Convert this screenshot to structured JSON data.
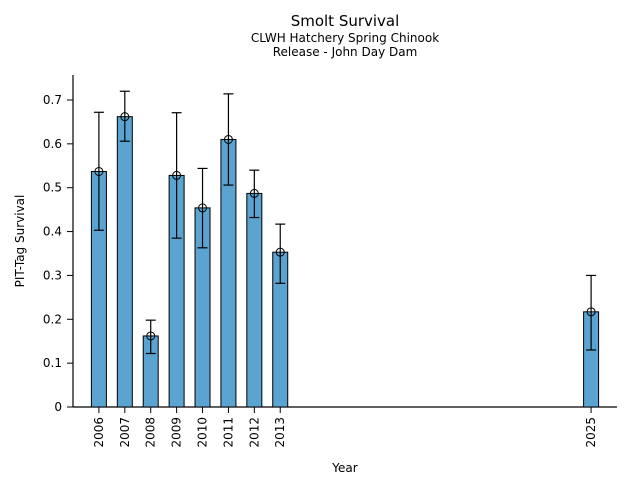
{
  "chart_data": {
    "type": "bar",
    "title": "Smolt Survival",
    "subtitle1": "CLWH Hatchery Spring Chinook",
    "subtitle2": "Release - John Day Dam",
    "xlabel": "Year",
    "ylabel": "PIT-Tag Survival",
    "xlim": [
      2005,
      2026
    ],
    "ylim": [
      0,
      0.757
    ],
    "grid": false,
    "legend": "none",
    "bar_color": "#5BA3D0",
    "bar_edge_color": "#000000",
    "errorbar_color": "#000000",
    "y_ticks": [
      0,
      0.1,
      0.2,
      0.3,
      0.4,
      0.5,
      0.6,
      0.7
    ],
    "y_tick_labels": [
      "0",
      "0.1",
      "0.2",
      "0.3",
      "0.4",
      "0.5",
      "0.6",
      "0.7"
    ],
    "categories": [
      "2006",
      "2007",
      "2008",
      "2009",
      "2010",
      "2011",
      "2012",
      "2013",
      "2025"
    ],
    "series": [
      {
        "name": "PIT-Tag Survival",
        "points": [
          {
            "year": 2006,
            "label": "2006",
            "value": 0.537,
            "err_lo": 0.403,
            "err_hi": 0.672
          },
          {
            "year": 2007,
            "label": "2007",
            "value": 0.662,
            "err_lo": 0.606,
            "err_hi": 0.72
          },
          {
            "year": 2008,
            "label": "2008",
            "value": 0.162,
            "err_lo": 0.122,
            "err_hi": 0.198
          },
          {
            "year": 2009,
            "label": "2009",
            "value": 0.528,
            "err_lo": 0.385,
            "err_hi": 0.671
          },
          {
            "year": 2010,
            "label": "2010",
            "value": 0.454,
            "err_lo": 0.363,
            "err_hi": 0.544
          },
          {
            "year": 2011,
            "label": "2011",
            "value": 0.61,
            "err_lo": 0.506,
            "err_hi": 0.714
          },
          {
            "year": 2012,
            "label": "2012",
            "value": 0.487,
            "err_lo": 0.432,
            "err_hi": 0.54
          },
          {
            "year": 2013,
            "label": "2013",
            "value": 0.353,
            "err_lo": 0.282,
            "err_hi": 0.417
          },
          {
            "year": 2025,
            "label": "2025",
            "value": 0.217,
            "err_lo": 0.13,
            "err_hi": 0.3
          }
        ]
      }
    ]
  }
}
